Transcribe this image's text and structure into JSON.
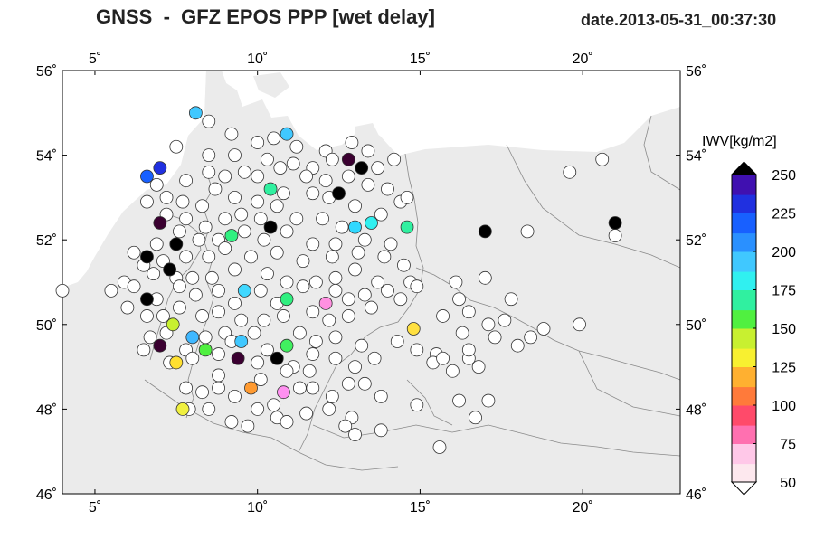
{
  "header": {
    "title": "GNSS  -  GFZ EPOS PPP [wet delay]",
    "date": "date.2013-05-31_00:37:30"
  },
  "map": {
    "lon_range": [
      4,
      23
    ],
    "lat_range": [
      46,
      56
    ],
    "lon_ticks": [
      {
        "value": 5,
        "label": "5˚"
      },
      {
        "value": 10,
        "label": "10˚"
      },
      {
        "value": 15,
        "label": "15˚"
      },
      {
        "value": 20,
        "label": "20˚"
      }
    ],
    "lat_ticks": [
      {
        "value": 56,
        "label": "56˚"
      },
      {
        "value": 54,
        "label": "54˚"
      },
      {
        "value": 52,
        "label": "52˚"
      },
      {
        "value": 50,
        "label": "50˚"
      },
      {
        "value": 48,
        "label": "48˚"
      },
      {
        "value": 46,
        "label": "46˚"
      }
    ],
    "land_color": "#ebebeb",
    "sea_color": "#ffffff"
  },
  "colorbar": {
    "label": "IWV[kg/m2]",
    "min": 50,
    "max": 250,
    "ticks": [
      "250",
      "225",
      "200",
      "175",
      "150",
      "125",
      "100",
      "75",
      "50"
    ],
    "stops": [
      {
        "v": 50,
        "c": "#fde8ee"
      },
      {
        "v": 62,
        "c": "#ffc8e8"
      },
      {
        "v": 75,
        "c": "#ff70b0"
      },
      {
        "v": 87,
        "c": "#ff4a6a"
      },
      {
        "v": 100,
        "c": "#ff7a3a"
      },
      {
        "v": 112,
        "c": "#ffb030"
      },
      {
        "v": 125,
        "c": "#f8f030"
      },
      {
        "v": 137,
        "c": "#c8f030"
      },
      {
        "v": 150,
        "c": "#50f040"
      },
      {
        "v": 162,
        "c": "#30f0a0"
      },
      {
        "v": 175,
        "c": "#30f0f0"
      },
      {
        "v": 187,
        "c": "#40c8ff"
      },
      {
        "v": 200,
        "c": "#2a90ff"
      },
      {
        "v": 212,
        "c": "#1860ff"
      },
      {
        "v": 225,
        "c": "#2030e0"
      },
      {
        "v": 237,
        "c": "#4010b0"
      },
      {
        "v": 250,
        "c": "#3a0030"
      }
    ]
  },
  "chart_data": {
    "type": "scatter",
    "title": "GNSS  -  GFZ EPOS PPP [wet delay]",
    "subtitle": "date.2013-05-31_00:37:30",
    "xlabel": "",
    "ylabel": "",
    "xlim": [
      4,
      23
    ],
    "ylim": [
      46,
      56
    ],
    "value_label": "IWV[kg/m2]",
    "stations": [
      {
        "lon": 8.1,
        "lat": 55.0,
        "iwv": 195,
        "c": "#40c8ff"
      },
      {
        "lon": 10.9,
        "lat": 54.5,
        "iwv": 185,
        "c": "#40c8ff"
      },
      {
        "lon": 6.6,
        "lat": 53.5,
        "iwv": 212,
        "c": "#1860ff"
      },
      {
        "lon": 7.0,
        "lat": 53.7,
        "iwv": 225,
        "c": "#2030e0"
      },
      {
        "lon": 12.8,
        "lat": 53.9,
        "iwv": 245,
        "c": "#3a0030"
      },
      {
        "lon": 13.2,
        "lat": 53.7,
        "iwv": 260,
        "c": "#000000"
      },
      {
        "lon": 12.5,
        "lat": 53.1,
        "iwv": 260,
        "c": "#000000"
      },
      {
        "lon": 10.4,
        "lat": 53.2,
        "iwv": 165,
        "c": "#30f0a0"
      },
      {
        "lon": 7.0,
        "lat": 52.4,
        "iwv": 245,
        "c": "#3a0030"
      },
      {
        "lon": 7.5,
        "lat": 51.9,
        "iwv": 260,
        "c": "#000000"
      },
      {
        "lon": 6.6,
        "lat": 51.6,
        "iwv": 260,
        "c": "#000000"
      },
      {
        "lon": 7.3,
        "lat": 51.3,
        "iwv": 260,
        "c": "#000000"
      },
      {
        "lon": 6.6,
        "lat": 50.6,
        "iwv": 260,
        "c": "#000000"
      },
      {
        "lon": 9.2,
        "lat": 52.1,
        "iwv": 158,
        "c": "#30f080"
      },
      {
        "lon": 10.4,
        "lat": 52.3,
        "iwv": 260,
        "c": "#000000"
      },
      {
        "lon": 13.0,
        "lat": 52.3,
        "iwv": 185,
        "c": "#30d8ff"
      },
      {
        "lon": 13.5,
        "lat": 52.4,
        "iwv": 180,
        "c": "#30f0f0"
      },
      {
        "lon": 14.6,
        "lat": 52.3,
        "iwv": 165,
        "c": "#30f0a0"
      },
      {
        "lon": 17.0,
        "lat": 52.2,
        "iwv": 260,
        "c": "#000000"
      },
      {
        "lon": 21.0,
        "lat": 52.4,
        "iwv": 260,
        "c": "#000000"
      },
      {
        "lon": 9.6,
        "lat": 50.8,
        "iwv": 185,
        "c": "#40d8ff"
      },
      {
        "lon": 10.9,
        "lat": 50.6,
        "iwv": 160,
        "c": "#30f080"
      },
      {
        "lon": 12.1,
        "lat": 50.5,
        "iwv": 65,
        "c": "#ff90e0"
      },
      {
        "lon": 7.4,
        "lat": 50.0,
        "iwv": 135,
        "c": "#c8f030"
      },
      {
        "lon": 8.0,
        "lat": 49.7,
        "iwv": 190,
        "c": "#40b8ff"
      },
      {
        "lon": 7.0,
        "lat": 49.5,
        "iwv": 250,
        "c": "#3a0030"
      },
      {
        "lon": 8.4,
        "lat": 49.4,
        "iwv": 150,
        "c": "#50f040"
      },
      {
        "lon": 9.5,
        "lat": 49.6,
        "iwv": 195,
        "c": "#40c8ff"
      },
      {
        "lon": 10.9,
        "lat": 49.5,
        "iwv": 155,
        "c": "#40f060"
      },
      {
        "lon": 9.4,
        "lat": 49.2,
        "iwv": 245,
        "c": "#3a0030"
      },
      {
        "lon": 10.6,
        "lat": 49.2,
        "iwv": 260,
        "c": "#000000"
      },
      {
        "lon": 7.5,
        "lat": 49.1,
        "iwv": 123,
        "c": "#ffe030"
      },
      {
        "lon": 14.8,
        "lat": 49.9,
        "iwv": 120,
        "c": "#ffe040"
      },
      {
        "lon": 9.8,
        "lat": 48.5,
        "iwv": 105,
        "c": "#ff9a30"
      },
      {
        "lon": 10.8,
        "lat": 48.4,
        "iwv": 70,
        "c": "#ff90f0"
      },
      {
        "lon": 7.7,
        "lat": 48.0,
        "iwv": 125,
        "c": "#f0f040"
      }
    ],
    "white_stations": [
      [
        8.5,
        54.8
      ],
      [
        9.2,
        54.5
      ],
      [
        10.0,
        54.3
      ],
      [
        10.5,
        54.4
      ],
      [
        11.2,
        54.2
      ],
      [
        12.1,
        54.1
      ],
      [
        12.9,
        54.3
      ],
      [
        13.4,
        54.1
      ],
      [
        14.2,
        53.9
      ],
      [
        7.5,
        54.2
      ],
      [
        8.5,
        54.0
      ],
      [
        9.3,
        54.0
      ],
      [
        10.3,
        53.9
      ],
      [
        11.1,
        53.8
      ],
      [
        11.7,
        53.7
      ],
      [
        12.3,
        53.9
      ],
      [
        13.7,
        53.7
      ],
      [
        6.9,
        53.3
      ],
      [
        7.8,
        53.4
      ],
      [
        8.5,
        53.6
      ],
      [
        9.0,
        53.5
      ],
      [
        9.6,
        53.6
      ],
      [
        10.0,
        53.5
      ],
      [
        10.7,
        53.7
      ],
      [
        11.5,
        53.5
      ],
      [
        12.1,
        53.4
      ],
      [
        12.8,
        53.5
      ],
      [
        13.4,
        53.3
      ],
      [
        14.0,
        53.2
      ],
      [
        6.6,
        52.9
      ],
      [
        7.2,
        53.0
      ],
      [
        7.7,
        52.9
      ],
      [
        8.3,
        52.8
      ],
      [
        8.7,
        53.2
      ],
      [
        9.3,
        53.0
      ],
      [
        10.0,
        52.9
      ],
      [
        10.8,
        53.1
      ],
      [
        11.7,
        53.1
      ],
      [
        12.2,
        53.0
      ],
      [
        13.0,
        52.8
      ],
      [
        13.8,
        52.6
      ],
      [
        7.2,
        52.6
      ],
      [
        7.8,
        52.5
      ],
      [
        8.4,
        52.3
      ],
      [
        9.0,
        52.5
      ],
      [
        9.5,
        52.6
      ],
      [
        10.1,
        52.5
      ],
      [
        10.6,
        52.8
      ],
      [
        11.2,
        52.5
      ],
      [
        12.0,
        52.5
      ],
      [
        12.6,
        52.3
      ],
      [
        6.2,
        51.7
      ],
      [
        6.9,
        51.9
      ],
      [
        7.6,
        52.2
      ],
      [
        8.2,
        52.0
      ],
      [
        8.8,
        52.0
      ],
      [
        9.6,
        52.2
      ],
      [
        10.2,
        52.0
      ],
      [
        10.9,
        52.2
      ],
      [
        11.7,
        51.9
      ],
      [
        12.4,
        51.9
      ],
      [
        13.3,
        52.0
      ],
      [
        14.1,
        51.9
      ],
      [
        6.5,
        51.4
      ],
      [
        7.1,
        51.5
      ],
      [
        7.8,
        51.6
      ],
      [
        8.5,
        51.6
      ],
      [
        9.0,
        51.8
      ],
      [
        9.8,
        51.6
      ],
      [
        10.6,
        51.7
      ],
      [
        11.4,
        51.5
      ],
      [
        12.3,
        51.6
      ],
      [
        13.1,
        51.7
      ],
      [
        13.9,
        51.6
      ],
      [
        14.5,
        51.4
      ],
      [
        5.9,
        51.0
      ],
      [
        6.2,
        50.9
      ],
      [
        6.8,
        51.2
      ],
      [
        7.5,
        51.1
      ],
      [
        8.0,
        51.1
      ],
      [
        8.6,
        51.1
      ],
      [
        9.3,
        51.3
      ],
      [
        10.3,
        51.2
      ],
      [
        10.9,
        51.0
      ],
      [
        11.8,
        51.0
      ],
      [
        12.4,
        51.1
      ],
      [
        13.0,
        51.3
      ],
      [
        13.7,
        51.0
      ],
      [
        14.7,
        51.0
      ],
      [
        6.9,
        50.6
      ],
      [
        7.6,
        50.9
      ],
      [
        8.1,
        50.7
      ],
      [
        8.8,
        50.8
      ],
      [
        9.3,
        50.5
      ],
      [
        10.1,
        50.8
      ],
      [
        10.6,
        50.5
      ],
      [
        11.4,
        50.9
      ],
      [
        12.4,
        50.8
      ],
      [
        12.8,
        50.6
      ],
      [
        13.3,
        50.7
      ],
      [
        14.0,
        50.8
      ],
      [
        6.6,
        50.2
      ],
      [
        7.1,
        50.2
      ],
      [
        7.6,
        50.4
      ],
      [
        8.3,
        50.2
      ],
      [
        8.8,
        50.3
      ],
      [
        9.5,
        50.1
      ],
      [
        10.2,
        50.1
      ],
      [
        10.8,
        50.2
      ],
      [
        11.7,
        50.3
      ],
      [
        12.2,
        50.1
      ],
      [
        12.8,
        50.2
      ],
      [
        13.5,
        50.4
      ],
      [
        14.4,
        50.6
      ],
      [
        14.9,
        50.9
      ],
      [
        15.7,
        50.2
      ],
      [
        16.2,
        50.6
      ],
      [
        16.5,
        50.3
      ],
      [
        17.1,
        50.0
      ],
      [
        17.6,
        50.1
      ],
      [
        18.8,
        49.9
      ],
      [
        19.9,
        50.0
      ],
      [
        6.7,
        49.7
      ],
      [
        7.2,
        49.8
      ],
      [
        7.8,
        49.4
      ],
      [
        8.4,
        49.7
      ],
      [
        9.0,
        49.8
      ],
      [
        9.9,
        49.8
      ],
      [
        10.3,
        49.4
      ],
      [
        11.3,
        49.8
      ],
      [
        11.8,
        49.6
      ],
      [
        12.4,
        49.7
      ],
      [
        13.2,
        49.5
      ],
      [
        14.3,
        49.6
      ],
      [
        14.9,
        49.4
      ],
      [
        15.5,
        49.3
      ],
      [
        16.3,
        49.8
      ],
      [
        17.3,
        49.7
      ],
      [
        18.0,
        49.5
      ],
      [
        18.4,
        49.7
      ],
      [
        6.5,
        49.4
      ],
      [
        7.3,
        49.1
      ],
      [
        8.0,
        49.2
      ],
      [
        8.8,
        49.3
      ],
      [
        10.0,
        49.1
      ],
      [
        11.1,
        49.0
      ],
      [
        11.7,
        49.3
      ],
      [
        12.4,
        49.2
      ],
      [
        13.0,
        49.0
      ],
      [
        13.6,
        49.2
      ],
      [
        15.4,
        49.1
      ],
      [
        16.0,
        48.9
      ],
      [
        16.5,
        49.2
      ],
      [
        16.8,
        49.0
      ],
      [
        7.8,
        48.5
      ],
      [
        8.3,
        48.4
      ],
      [
        8.8,
        48.5
      ],
      [
        9.3,
        48.3
      ],
      [
        10.1,
        48.7
      ],
      [
        10.5,
        48.1
      ],
      [
        11.3,
        48.5
      ],
      [
        11.6,
        48.9
      ],
      [
        12.3,
        48.3
      ],
      [
        12.8,
        48.6
      ],
      [
        13.3,
        48.6
      ],
      [
        13.8,
        48.3
      ],
      [
        14.9,
        48.1
      ],
      [
        16.2,
        48.2
      ],
      [
        17.1,
        48.2
      ],
      [
        7.9,
        48.0
      ],
      [
        8.5,
        48.0
      ],
      [
        9.2,
        47.7
      ],
      [
        9.7,
        47.6
      ],
      [
        10.0,
        48.0
      ],
      [
        10.6,
        47.8
      ],
      [
        10.9,
        47.7
      ],
      [
        11.5,
        47.9
      ],
      [
        12.2,
        48.0
      ],
      [
        12.9,
        47.8
      ],
      [
        13.0,
        47.4
      ],
      [
        13.8,
        47.5
      ],
      [
        15.6,
        47.1
      ],
      [
        16.7,
        47.8
      ],
      [
        4.0,
        50.8
      ],
      [
        5.5,
        50.8
      ],
      [
        6.0,
        50.4
      ],
      [
        15.7,
        49.2
      ],
      [
        16.5,
        49.4
      ],
      [
        17.0,
        51.1
      ],
      [
        17.8,
        50.6
      ],
      [
        18.3,
        52.2
      ],
      [
        19.6,
        53.6
      ],
      [
        20.6,
        53.9
      ],
      [
        21.0,
        52.1
      ],
      [
        14.4,
        52.9
      ],
      [
        14.6,
        53.0
      ],
      [
        10.9,
        48.9
      ],
      [
        11.7,
        48.5
      ],
      [
        8.8,
        48.8
      ],
      [
        9.2,
        49.6
      ],
      [
        12.7,
        47.6
      ],
      [
        16.1,
        51.0
      ]
    ]
  }
}
